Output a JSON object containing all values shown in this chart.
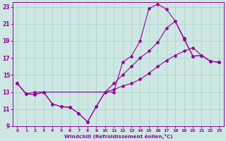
{
  "xlabel": "Windchill (Refroidissement éolien,°C)",
  "xlim": [
    -0.5,
    23.5
  ],
  "ylim": [
    9,
    23.5
  ],
  "xticks": [
    0,
    1,
    2,
    3,
    4,
    5,
    6,
    7,
    8,
    9,
    10,
    11,
    12,
    13,
    14,
    15,
    16,
    17,
    18,
    19,
    20,
    21,
    22,
    23
  ],
  "yticks": [
    9,
    11,
    13,
    15,
    17,
    19,
    21,
    23
  ],
  "bg_color": "#cde8e3",
  "line_color": "#990099",
  "grid_color": "#aacccc",
  "lines": [
    {
      "x": [
        0,
        1,
        2,
        3,
        4,
        5,
        6,
        7,
        8,
        9,
        10,
        11,
        12,
        13,
        14,
        15,
        16,
        17,
        18,
        19,
        20,
        21,
        22,
        23
      ],
      "y": [
        14.0,
        12.8,
        12.7,
        13.0,
        11.6,
        11.3,
        11.2,
        10.5,
        9.5,
        11.3,
        13.0,
        13.0,
        16.5,
        17.2,
        19.0,
        22.8,
        23.3,
        22.7,
        21.3,
        19.2,
        17.2,
        17.3,
        16.6,
        16.5
      ]
    },
    {
      "x": [
        0,
        1,
        2,
        3,
        4,
        5,
        6,
        7,
        8,
        9,
        10,
        11,
        12,
        13,
        14,
        15,
        16,
        17,
        18,
        19,
        20,
        21,
        22,
        23
      ],
      "y": [
        14.0,
        12.8,
        12.7,
        13.0,
        11.6,
        11.3,
        11.2,
        10.5,
        9.5,
        11.3,
        13.0,
        14.0,
        15.0,
        16.0,
        17.0,
        17.8,
        18.8,
        20.5,
        21.3,
        19.3,
        17.2,
        17.3,
        16.6,
        16.5
      ]
    },
    {
      "x": [
        0,
        1,
        2,
        3,
        10,
        11,
        12,
        13,
        14,
        15,
        16,
        17,
        18,
        19,
        20,
        21,
        22,
        23
      ],
      "y": [
        14.0,
        12.8,
        13.0,
        13.0,
        13.0,
        13.3,
        13.7,
        14.0,
        14.5,
        15.2,
        16.0,
        16.7,
        17.3,
        17.8,
        18.2,
        17.3,
        16.6,
        16.5
      ]
    }
  ]
}
